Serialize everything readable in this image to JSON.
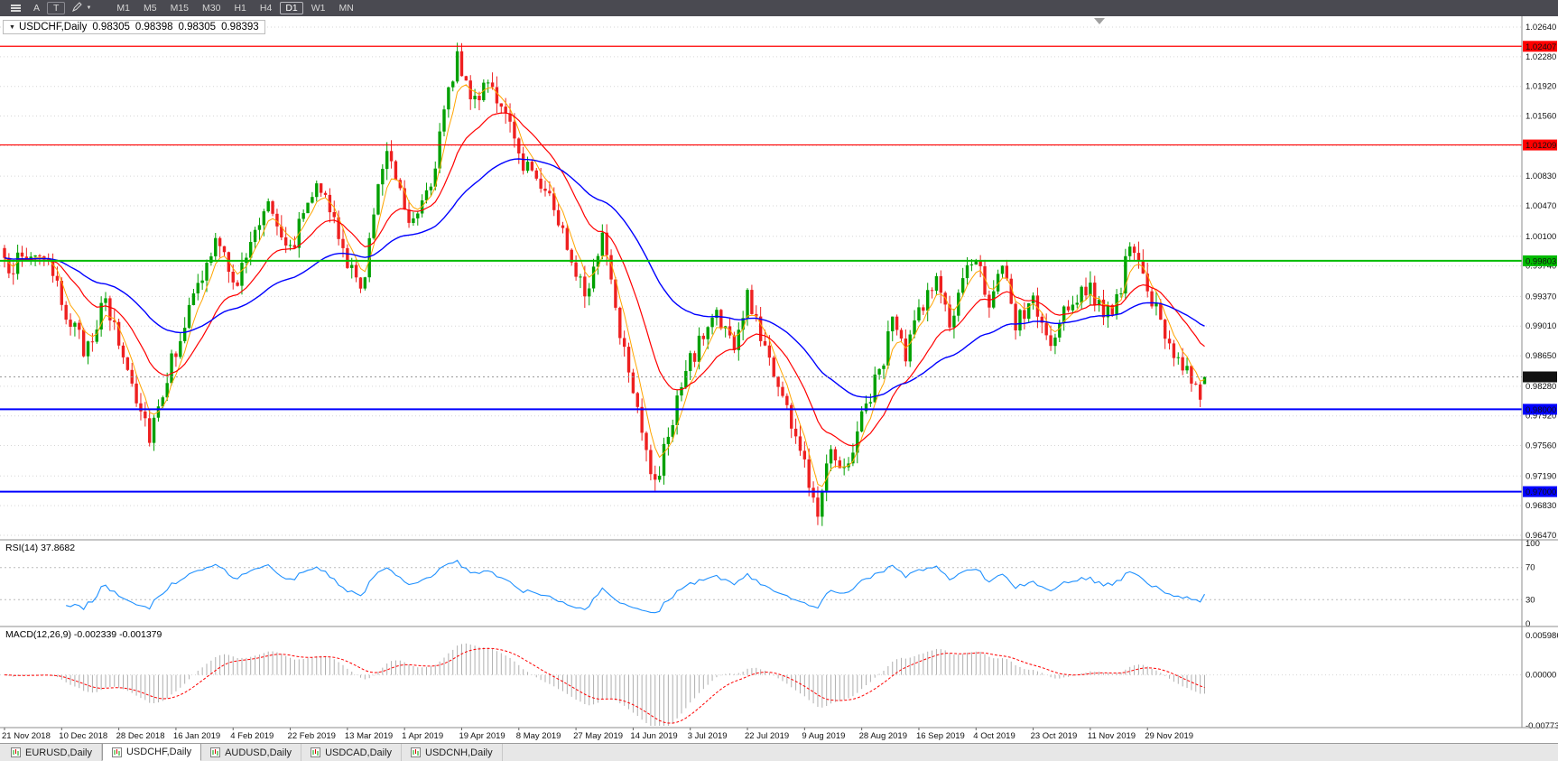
{
  "toolbar": {
    "a_tool_label": "A",
    "text_tool_label": "T",
    "draw_caret": "▼",
    "timeframes": [
      "M1",
      "M5",
      "M15",
      "M30",
      "H1",
      "H4",
      "D1",
      "W1",
      "MN"
    ],
    "active_timeframe": "D1"
  },
  "chart": {
    "title": {
      "dropdown_glyph": "▼",
      "symbol": "USDCHF,Daily",
      "open": "0.98305",
      "high": "0.98398",
      "low": "0.98305",
      "close": "0.98393"
    }
  },
  "chart_data": {
    "type": "candlestick",
    "symbol": "USDCHF",
    "timeframe": "Daily",
    "current_bar": {
      "open": 0.98305,
      "high": 0.98398,
      "low": 0.98305,
      "close": 0.98393
    },
    "candle_up_color": "#00A000",
    "candle_down_color": "#EE2020",
    "render_seed": 987654321,
    "candle_count": 274,
    "candles_per_label": 13,
    "price_axis": {
      "top_price": 1.0264,
      "bottom_price": 0.9647,
      "ticks": [
        "1.02640",
        "1.02280",
        "1.01920",
        "1.01560",
        "1.01200",
        "1.00830",
        "1.00470",
        "1.00100",
        "0.99740",
        "0.99370",
        "0.99010",
        "0.98650",
        "0.98280",
        "0.97920",
        "0.97560",
        "0.97190",
        "0.96830",
        "0.96470"
      ]
    },
    "x_axis_labels": [
      "21 Nov 2018",
      "10 Dec 2018",
      "28 Dec 2018",
      "16 Jan 2019",
      "4 Feb 2019",
      "22 Feb 2019",
      "13 Mar 2019",
      "1 Apr 2019",
      "19 Apr 2019",
      "8 May 2019",
      "27 May 2019",
      "14 Jun 2019",
      "3 Jul 2019",
      "22 Jul 2019",
      "9 Aug 2019",
      "28 Aug 2019",
      "16 Sep 2019",
      "4 Oct 2019",
      "23 Oct 2019",
      "11 Nov 2019",
      "29 Nov 2019"
    ],
    "price_path_anchors": [
      [
        0,
        0.9972
      ],
      [
        8,
        0.9992
      ],
      [
        18,
        0.9872
      ],
      [
        23,
        0.9928
      ],
      [
        33,
        0.9772
      ],
      [
        40,
        0.9892
      ],
      [
        48,
        1.0002
      ],
      [
        53,
        0.9955
      ],
      [
        60,
        1.0058
      ],
      [
        65,
        0.9992
      ],
      [
        71,
        1.0085
      ],
      [
        78,
        0.9978
      ],
      [
        81,
        0.9942
      ],
      [
        87,
        1.0125
      ],
      [
        92,
        1.003
      ],
      [
        97,
        1.0078
      ],
      [
        103,
        1.0232
      ],
      [
        107,
        1.0168
      ],
      [
        110,
        1.0208
      ],
      [
        117,
        1.0108
      ],
      [
        123,
        1.0072
      ],
      [
        129,
        0.9985
      ],
      [
        133,
        0.9938
      ],
      [
        136,
        1.0018
      ],
      [
        140,
        0.9898
      ],
      [
        143,
        0.9832
      ],
      [
        148,
        0.9702
      ],
      [
        152,
        0.9792
      ],
      [
        156,
        0.9858
      ],
      [
        162,
        0.992
      ],
      [
        166,
        0.9872
      ],
      [
        169,
        0.9935
      ],
      [
        172,
        0.9892
      ],
      [
        176,
        0.9832
      ],
      [
        180,
        0.9768
      ],
      [
        183,
        0.9712
      ],
      [
        185,
        0.9682
      ],
      [
        188,
        0.9762
      ],
      [
        191,
        0.9722
      ],
      [
        195,
        0.9792
      ],
      [
        199,
        0.9845
      ],
      [
        202,
        0.9908
      ],
      [
        205,
        0.9862
      ],
      [
        208,
        0.9922
      ],
      [
        212,
        0.9958
      ],
      [
        215,
        0.9902
      ],
      [
        218,
        0.9948
      ],
      [
        221,
        0.9992
      ],
      [
        224,
        0.9932
      ],
      [
        227,
        0.9968
      ],
      [
        230,
        0.9902
      ],
      [
        234,
        0.9932
      ],
      [
        238,
        0.9872
      ],
      [
        242,
        0.9928
      ],
      [
        247,
        0.9952
      ],
      [
        250,
        0.9905
      ],
      [
        253,
        0.9932
      ],
      [
        256,
        0.9995
      ],
      [
        260,
        0.9948
      ],
      [
        263,
        0.9902
      ],
      [
        266,
        0.9872
      ],
      [
        269,
        0.9848
      ],
      [
        272,
        0.9818
      ],
      [
        273,
        0.98393
      ]
    ],
    "moving_averages": [
      {
        "period": 5,
        "color": "#FFA500",
        "width": 1
      },
      {
        "period": 18,
        "color": "#FF0000",
        "width": 1.2
      },
      {
        "period": 48,
        "color": "#0000FF",
        "width": 1.4
      }
    ],
    "horizontal_levels": [
      {
        "price": 1.02407,
        "label": "1.02407",
        "color": "#FF0000",
        "width": 1.2
      },
      {
        "price": 1.01209,
        "label": "1.01209",
        "color": "#FF0000",
        "width": 1.2
      },
      {
        "price": 0.99803,
        "label": "0.99803",
        "color": "#00BB00",
        "width": 2
      },
      {
        "price": 0.98,
        "label": "0.98000",
        "color": "#0000FF",
        "width": 2
      },
      {
        "price": 0.97,
        "label": "0.97000",
        "color": "#0000FF",
        "width": 2
      }
    ],
    "current_price_line": {
      "price": 0.98393,
      "label": "0.98393",
      "badge_color": "#111111"
    },
    "indicators": [
      {
        "name": "RSI",
        "label": "RSI(14) 37.8682",
        "period": 14,
        "value": 37.8682,
        "color": "#1E90FF",
        "levels": [
          70,
          30
        ],
        "axis_labels": [
          "100",
          "70",
          "30",
          "0"
        ]
      },
      {
        "name": "MACD",
        "label": "MACD(12,26,9) -0.002339 -0.001379",
        "params": [
          12,
          26,
          9
        ],
        "macd_value": -0.002339,
        "signal_value": -0.001379,
        "histogram_color": "#AFAFAF",
        "signal_color": "#FF0000",
        "axis_labels": [
          "0.005986",
          "0.00000",
          "-0.007737"
        ],
        "axis_max": 0.005986,
        "axis_min": -0.007737
      }
    ]
  },
  "tabs": [
    {
      "label": "EURUSD,Daily",
      "active": false
    },
    {
      "label": "USDCHF,Daily",
      "active": true
    },
    {
      "label": "AUDUSD,Daily",
      "active": false
    },
    {
      "label": "USDCAD,Daily",
      "active": false
    },
    {
      "label": "USDCNH,Daily",
      "active": false
    }
  ]
}
